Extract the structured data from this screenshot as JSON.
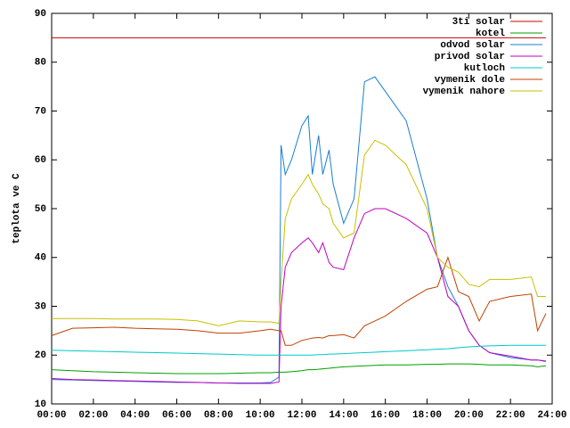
{
  "chart_data": {
    "type": "line",
    "y_label": "teplota ve C",
    "x": [
      0,
      1,
      2,
      3,
      4,
      5,
      6,
      7,
      8,
      9,
      10,
      10.5,
      10.9,
      11.0,
      11.2,
      11.5,
      12,
      12.3,
      12.5,
      12.8,
      13,
      13.3,
      13.5,
      14,
      14.5,
      15,
      15.5,
      16,
      17,
      18,
      18.5,
      19,
      19.5,
      20,
      20.5,
      21,
      22,
      23,
      23.3,
      23.7
    ],
    "series": [
      {
        "name": "3ti solar",
        "color": "#cc0000",
        "values": [
          85,
          85,
          85,
          85,
          85,
          85,
          85,
          85,
          85,
          85,
          85,
          85,
          85,
          85,
          85,
          85,
          85,
          85,
          85,
          85,
          85,
          85,
          85,
          85,
          85,
          85,
          85,
          85,
          85,
          85,
          85,
          85,
          85,
          85,
          85,
          85,
          85,
          85,
          85,
          85
        ]
      },
      {
        "name": "kotel",
        "color": "#00a000",
        "values": [
          17,
          16.8,
          16.6,
          16.5,
          16.4,
          16.3,
          16.2,
          16.2,
          16.2,
          16.3,
          16.4,
          16.4,
          16.5,
          16.5,
          16.5,
          16.6,
          16.8,
          17,
          17,
          17.1,
          17.2,
          17.3,
          17.4,
          17.6,
          17.7,
          17.8,
          17.9,
          18,
          18,
          18.1,
          18.1,
          18.2,
          18.2,
          18.2,
          18.1,
          18,
          18,
          17.8,
          17.6,
          17.8
        ]
      },
      {
        "name": "odvod solar",
        "color": "#1a7fd0",
        "values": [
          15,
          14.9,
          14.8,
          14.7,
          14.6,
          14.5,
          14.4,
          14.4,
          14.3,
          14.3,
          14.3,
          14.4,
          15.5,
          63,
          57,
          60,
          67,
          69,
          57,
          65,
          57,
          62,
          55,
          47,
          52,
          76,
          77,
          74,
          68,
          52,
          40,
          34,
          30,
          25,
          22,
          20.5,
          19.5,
          19,
          19,
          18.7
        ]
      },
      {
        "name": "privod solar",
        "color": "#c000c0",
        "values": [
          15.2,
          15,
          14.9,
          14.8,
          14.7,
          14.6,
          14.5,
          14.4,
          14.3,
          14.2,
          14.2,
          14.2,
          14.5,
          30,
          38,
          41,
          43,
          44,
          43,
          41,
          43,
          39,
          38,
          37.5,
          44,
          49,
          50,
          50,
          48,
          45,
          40,
          32,
          30,
          25,
          22,
          20.5,
          19.8,
          19,
          19,
          18.8
        ]
      },
      {
        "name": "kutloch",
        "color": "#00c8c8",
        "values": [
          21,
          20.9,
          20.8,
          20.7,
          20.6,
          20.5,
          20.4,
          20.3,
          20.2,
          20.1,
          20,
          20,
          20,
          20,
          20,
          20,
          20,
          20,
          20,
          20.1,
          20.1,
          20.2,
          20.2,
          20.3,
          20.4,
          20.5,
          20.6,
          20.7,
          20.9,
          21.1,
          21.2,
          21.3,
          21.5,
          21.7,
          21.8,
          21.9,
          22,
          22,
          22,
          22
        ]
      },
      {
        "name": "vymenik dole",
        "color": "#c04000",
        "values": [
          24,
          25.5,
          25.6,
          25.7,
          25.5,
          25.4,
          25.3,
          25,
          24.5,
          24.5,
          25,
          25.3,
          25,
          25,
          22,
          22,
          23,
          23.3,
          23.5,
          23.6,
          23.5,
          24,
          24,
          24.2,
          23.5,
          26,
          27,
          28,
          31,
          33.5,
          34,
          40,
          33,
          32,
          27,
          31,
          32,
          32.5,
          25,
          28.5
        ]
      },
      {
        "name": "vymenik nahore",
        "color": "#c8c000",
        "values": [
          27.5,
          27.5,
          27.5,
          27.4,
          27.4,
          27.4,
          27.3,
          27,
          26,
          27,
          26.8,
          26.8,
          26.5,
          35,
          48,
          52,
          55,
          57,
          55,
          53,
          51,
          50,
          47,
          44,
          45,
          61,
          64,
          63,
          59,
          50,
          40,
          38,
          37,
          34.5,
          34,
          35.5,
          35.5,
          36,
          32,
          32
        ]
      }
    ],
    "xlim": [
      0,
      24
    ],
    "xticks": [
      {
        "value": 0,
        "label": "00:00"
      },
      {
        "value": 2,
        "label": "02:00"
      },
      {
        "value": 4,
        "label": "04:00"
      },
      {
        "value": 6,
        "label": "06:00"
      },
      {
        "value": 8,
        "label": "08:00"
      },
      {
        "value": 10,
        "label": "10:00"
      },
      {
        "value": 12,
        "label": "12:00"
      },
      {
        "value": 14,
        "label": "14:00"
      },
      {
        "value": 16,
        "label": "16:00"
      },
      {
        "value": 18,
        "label": "18:00"
      },
      {
        "value": 20,
        "label": "20:00"
      },
      {
        "value": 22,
        "label": "22:00"
      },
      {
        "value": 24,
        "label": "24:00"
      }
    ],
    "ylim": [
      10,
      90
    ],
    "yticks": [
      10,
      20,
      30,
      40,
      50,
      60,
      70,
      80,
      90
    ],
    "legend": "top-right"
  }
}
